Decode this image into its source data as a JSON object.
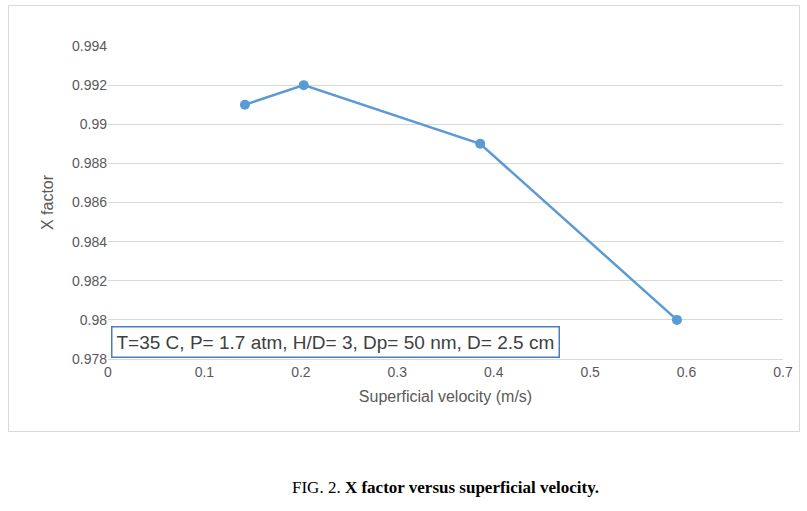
{
  "chart_data": {
    "type": "line",
    "x_label": "Superficial velocity (m/s)",
    "y_label": "X factor",
    "x": [
      0.142,
      0.203,
      0.386,
      0.59
    ],
    "values": [
      0.991,
      0.992,
      0.989,
      0.98
    ],
    "color": "#5b9bd5",
    "marker": "circle",
    "xlim": [
      0,
      0.7
    ],
    "xticks": [
      0,
      0.1,
      0.2,
      0.3,
      0.4,
      0.5,
      0.6,
      0.7
    ],
    "ylim": [
      0.978,
      0.994
    ],
    "yticks": [
      0.978,
      0.98,
      0.982,
      0.984,
      0.986,
      0.988,
      0.99,
      0.992,
      0.994
    ],
    "grid": true,
    "annotations": [
      "T=35 C, P= 1.7 atm, H/D= 3, Dp= 50 nm, D= 2.5 cm"
    ],
    "caption": {
      "prefix": "FIG. 2.",
      "text": "X factor versus superficial velocity."
    }
  }
}
